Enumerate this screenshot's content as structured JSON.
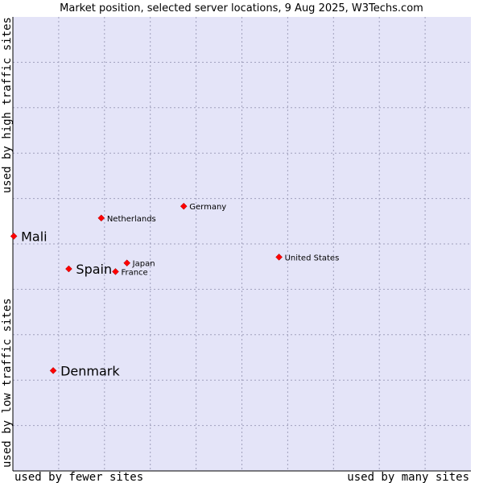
{
  "chart_data": {
    "type": "scatter",
    "title": "Market position, selected server locations, 9 Aug 2025, W3Techs.com",
    "xlabel_low": "used by fewer sites",
    "xlabel_high": "used by many sites",
    "ylabel_low": "used by low traffic sites",
    "ylabel_high": "used by high traffic sites",
    "xlim": [
      0,
      100
    ],
    "ylim": [
      0,
      100
    ],
    "grid": true,
    "point_color": "#ff0000",
    "plot_background": "#e4e4f8",
    "points": [
      {
        "name": "Mali",
        "x": 0.2,
        "y": 51.7,
        "emphasis": true
      },
      {
        "name": "Spain",
        "x": 12.2,
        "y": 44.5,
        "emphasis": true
      },
      {
        "name": "Denmark",
        "x": 8.8,
        "y": 22.1,
        "emphasis": true
      },
      {
        "name": "Netherlands",
        "x": 19.3,
        "y": 55.7,
        "emphasis": false
      },
      {
        "name": "Germany",
        "x": 37.3,
        "y": 58.3,
        "emphasis": false
      },
      {
        "name": "Japan",
        "x": 24.9,
        "y": 45.8,
        "emphasis": false
      },
      {
        "name": "France",
        "x": 22.4,
        "y": 43.9,
        "emphasis": false
      },
      {
        "name": "United States",
        "x": 58.1,
        "y": 47.1,
        "emphasis": false
      }
    ]
  }
}
